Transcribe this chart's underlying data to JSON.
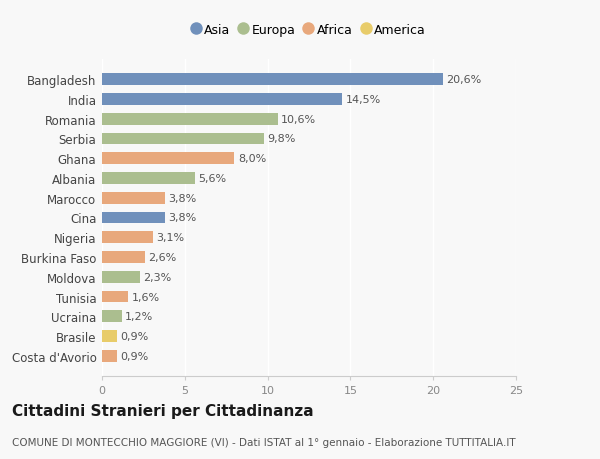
{
  "countries": [
    "Bangladesh",
    "India",
    "Romania",
    "Serbia",
    "Ghana",
    "Albania",
    "Marocco",
    "Cina",
    "Nigeria",
    "Burkina Faso",
    "Moldova",
    "Tunisia",
    "Ucraina",
    "Brasile",
    "Costa d'Avorio"
  ],
  "values": [
    20.6,
    14.5,
    10.6,
    9.8,
    8.0,
    5.6,
    3.8,
    3.8,
    3.1,
    2.6,
    2.3,
    1.6,
    1.2,
    0.9,
    0.9
  ],
  "labels": [
    "20,6%",
    "14,5%",
    "10,6%",
    "9,8%",
    "8,0%",
    "5,6%",
    "3,8%",
    "3,8%",
    "3,1%",
    "2,6%",
    "2,3%",
    "1,6%",
    "1,2%",
    "0,9%",
    "0,9%"
  ],
  "continents": [
    "Asia",
    "Asia",
    "Europa",
    "Europa",
    "Africa",
    "Europa",
    "Africa",
    "Asia",
    "Africa",
    "Africa",
    "Europa",
    "Africa",
    "Europa",
    "America",
    "Africa"
  ],
  "continent_colors": {
    "Asia": "#7090bb",
    "Europa": "#abbe8f",
    "Africa": "#e8a87c",
    "America": "#e8cc6a"
  },
  "legend_order": [
    "Asia",
    "Europa",
    "Africa",
    "America"
  ],
  "title": "Cittadini Stranieri per Cittadinanza",
  "subtitle": "COMUNE DI MONTECCHIO MAGGIORE (VI) - Dati ISTAT al 1° gennaio - Elaborazione TUTTITALIA.IT",
  "xlim": [
    0,
    25
  ],
  "xticks": [
    0,
    5,
    10,
    15,
    20,
    25
  ],
  "background_color": "#f8f8f8",
  "bar_height": 0.6,
  "title_fontsize": 11,
  "subtitle_fontsize": 7.5,
  "label_fontsize": 8,
  "tick_fontsize": 8,
  "legend_fontsize": 9,
  "ytick_fontsize": 8.5
}
